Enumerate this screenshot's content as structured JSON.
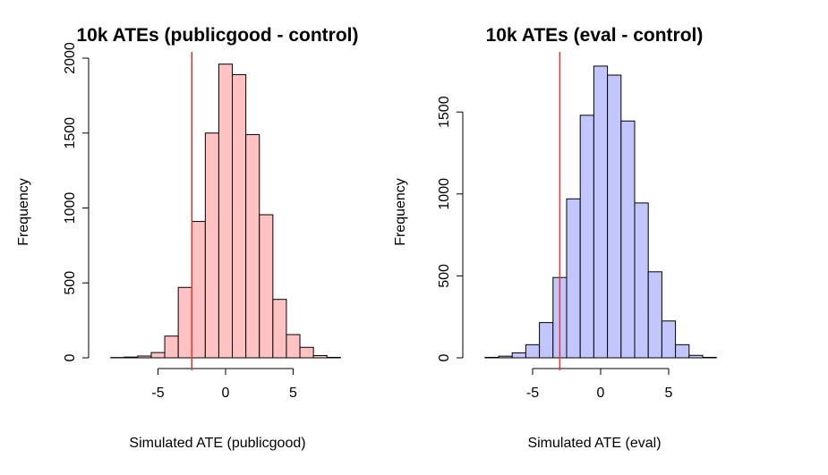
{
  "chart_data": [
    {
      "type": "bar",
      "title": "10k ATEs (publicgood - control)",
      "xlabel": "Simulated ATE (publicgood)",
      "ylabel": "Frequency",
      "bin_edges": [
        -8.5,
        -7.5,
        -6.5,
        -5.5,
        -4.5,
        -3.5,
        -2.5,
        -1.5,
        -0.5,
        0.5,
        1.5,
        2.5,
        3.5,
        4.5,
        5.5,
        6.5,
        7.5,
        8.5
      ],
      "values": [
        2,
        5,
        12,
        35,
        145,
        470,
        910,
        1500,
        1960,
        1890,
        1490,
        955,
        390,
        155,
        70,
        15,
        3
      ],
      "xlim": [
        -10,
        8
      ],
      "ylim": [
        0,
        2000
      ],
      "x_ticks": [
        -5,
        0,
        5
      ],
      "y_ticks": [
        0,
        500,
        1000,
        1500,
        2000
      ],
      "vline": -2.5,
      "fill_color": "#ffc2c2",
      "line_color": "#e8352f",
      "grid": false
    },
    {
      "type": "bar",
      "title": "10k ATEs (eval - control)",
      "xlabel": "Simulated ATE (eval)",
      "ylabel": "Frequency",
      "bin_edges": [
        -8.5,
        -7.5,
        -6.5,
        -5.5,
        -4.5,
        -3.5,
        -2.5,
        -1.5,
        -0.5,
        0.5,
        1.5,
        2.5,
        3.5,
        4.5,
        5.5,
        6.5,
        7.5,
        8.5
      ],
      "values": [
        3,
        10,
        30,
        80,
        215,
        490,
        970,
        1480,
        1780,
        1725,
        1445,
        945,
        525,
        225,
        80,
        15,
        3
      ],
      "xlim": [
        -10,
        8
      ],
      "ylim": [
        0,
        1800
      ],
      "x_ticks": [
        -5,
        0,
        5
      ],
      "y_ticks": [
        0,
        500,
        1000,
        1500
      ],
      "vline": -3,
      "fill_color": "#c2c6fc",
      "line_color": "#e8352f",
      "grid": false
    }
  ]
}
